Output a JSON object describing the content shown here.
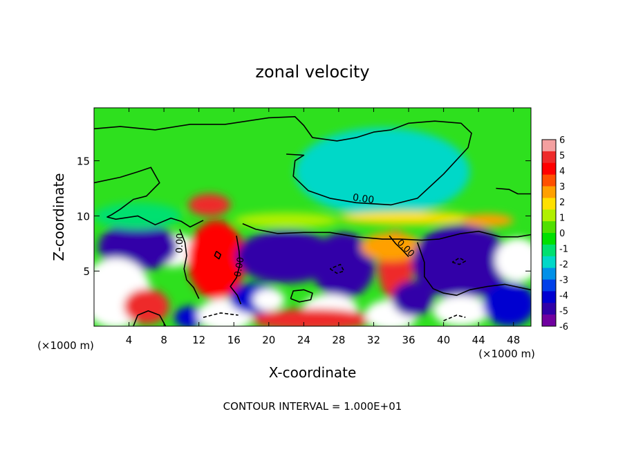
{
  "chart_data": {
    "type": "heatmap",
    "title": "zonal velocity",
    "xlabel": "X-coordinate",
    "ylabel": "Z-coordinate",
    "x_unit_left": "(×1000 m)",
    "x_unit_right": "(×1000 m)",
    "footer": "CONTOUR INTERVAL = 1.000E+01",
    "xlim": [
      0,
      50
    ],
    "ylim": [
      0,
      19.8
    ],
    "x_ticks": [
      4,
      8,
      12,
      16,
      20,
      24,
      28,
      32,
      36,
      40,
      44,
      48
    ],
    "y_ticks": [
      5,
      10,
      15
    ],
    "colorbar": {
      "range": [
        -6,
        6
      ],
      "ticks": [
        6,
        5,
        4,
        3,
        2,
        1,
        0,
        -1,
        -2,
        -3,
        -4,
        -5,
        -6
      ],
      "colors": [
        "#f4a0a0",
        "#ee2a2a",
        "#ff0000",
        "#ff5000",
        "#ffa000",
        "#ffe000",
        "#b0f000",
        "#50e000",
        "#00e000",
        "#00e070",
        "#00d8c8",
        "#0090e8",
        "#0040e8",
        "#0000d0",
        "#3000a8",
        "#7000a0"
      ]
    },
    "contour_labels": [
      "0.00",
      "0.00",
      "0.00",
      "0.00"
    ],
    "blobs": [
      {
        "x": 13.2,
        "z": 11.0,
        "rx": 2.4,
        "rz": 1.0,
        "v": 5
      },
      {
        "x": 9.0,
        "z": 6.9,
        "rx": 2.8,
        "rz": 1.5,
        "v": 7
      },
      {
        "x": 5.0,
        "z": 7.2,
        "rx": 4.5,
        "rz": 2.2,
        "v": -5
      },
      {
        "x": 14.0,
        "z": 6.0,
        "rx": 2.0,
        "rz": 2.8,
        "v": 7
      },
      {
        "x": 14.0,
        "z": 6.0,
        "rx": 3.3,
        "rz": 3.6,
        "v": 4
      },
      {
        "x": 21.5,
        "z": 6.8,
        "rx": 3.4,
        "rz": 1.6,
        "v": 7
      },
      {
        "x": 22.0,
        "z": 6.3,
        "rx": 5.8,
        "rz": 2.4,
        "v": -5
      },
      {
        "x": 28.0,
        "z": 5.5,
        "rx": 2.0,
        "rz": 2.0,
        "v": 7
      },
      {
        "x": 28.5,
        "z": 5.5,
        "rx": 3.6,
        "rz": 3.0,
        "v": -5
      },
      {
        "x": 34.5,
        "z": 5.5,
        "rx": 2.0,
        "rz": 3.2,
        "v": 5
      },
      {
        "x": 34.0,
        "z": 7.2,
        "rx": 3.5,
        "rz": 1.3,
        "v": 3
      },
      {
        "x": 42.0,
        "z": 5.7,
        "rx": 3.2,
        "rz": 2.2,
        "v": 7
      },
      {
        "x": 42.0,
        "z": 5.8,
        "rx": 5.6,
        "rz": 3.4,
        "v": -5
      },
      {
        "x": 48.5,
        "z": 6.0,
        "rx": 2.6,
        "rz": 2.0,
        "v": 7
      },
      {
        "x": 2.5,
        "z": 3.0,
        "rx": 4.0,
        "rz": 3.2,
        "v": 7
      },
      {
        "x": 6.0,
        "z": 1.8,
        "rx": 2.6,
        "rz": 1.6,
        "v": 5
      },
      {
        "x": 11.0,
        "z": 0.8,
        "rx": 1.8,
        "rz": 1.0,
        "v": -4
      },
      {
        "x": 15.0,
        "z": 1.0,
        "rx": 3.2,
        "rz": 1.5,
        "v": 7
      },
      {
        "x": 18.5,
        "z": 2.5,
        "rx": 3.0,
        "rz": 1.4,
        "v": -4
      },
      {
        "x": 20.0,
        "z": 2.4,
        "rx": 1.8,
        "rz": 1.0,
        "v": 7
      },
      {
        "x": 27.0,
        "z": 1.5,
        "rx": 3.2,
        "rz": 1.4,
        "v": 7
      },
      {
        "x": 25.0,
        "z": 0.6,
        "rx": 7.0,
        "rz": 1.0,
        "v": 5
      },
      {
        "x": 34.0,
        "z": 1.0,
        "rx": 3.0,
        "rz": 1.4,
        "v": 7
      },
      {
        "x": 36.5,
        "z": 2.5,
        "rx": 2.4,
        "rz": 1.6,
        "v": -5
      },
      {
        "x": 42.0,
        "z": 1.4,
        "rx": 3.2,
        "rz": 1.4,
        "v": 7
      },
      {
        "x": 47.5,
        "z": 2.0,
        "rx": 3.0,
        "rz": 2.0,
        "v": -4
      },
      {
        "x": 33.0,
        "z": 14.0,
        "rx": 10.0,
        "rz": 4.0,
        "v": -1.8
      },
      {
        "x": 36.0,
        "z": 9.8,
        "rx": 8.0,
        "rz": 0.6,
        "v": 2.2
      },
      {
        "x": 5.0,
        "z": 10.0,
        "rx": 5.0,
        "rz": 1.2,
        "v": -1.2
      },
      {
        "x": 22.0,
        "z": 9.6,
        "rx": 6.0,
        "rz": 0.7,
        "v": 1.2
      },
      {
        "x": 45.0,
        "z": 9.6,
        "rx": 3.0,
        "rz": 0.6,
        "v": 2.5
      }
    ],
    "contours": [
      {
        "dashed": false,
        "pts": [
          [
            0,
            17.9
          ],
          [
            3,
            18.1
          ],
          [
            7,
            17.8
          ],
          [
            11,
            18.3
          ],
          [
            15,
            18.3
          ],
          [
            20,
            18.9
          ],
          [
            23,
            19.0
          ],
          [
            24,
            18.2
          ],
          [
            25,
            17.1
          ],
          [
            27.8,
            16.8
          ],
          [
            30,
            17.1
          ],
          [
            32,
            17.6
          ],
          [
            34,
            17.8
          ],
          [
            36,
            18.4
          ],
          [
            39,
            18.6
          ],
          [
            42,
            18.4
          ],
          [
            43.2,
            17.5
          ],
          [
            42.8,
            16.2
          ],
          [
            40,
            13.8
          ],
          [
            37,
            11.6
          ],
          [
            34,
            11.0
          ],
          [
            30,
            11.2
          ],
          [
            27,
            11.6
          ],
          [
            24.5,
            12.3
          ],
          [
            22.8,
            13.6
          ],
          [
            23,
            15.0
          ],
          [
            24,
            15.5
          ],
          [
            22,
            15.6
          ]
        ]
      },
      {
        "dashed": false,
        "pts": [
          [
            0,
            13.0
          ],
          [
            3,
            13.5
          ],
          [
            5,
            14.0
          ],
          [
            6.5,
            14.4
          ],
          [
            7.5,
            13.0
          ],
          [
            6,
            11.8
          ],
          [
            4.5,
            11.5
          ],
          [
            3,
            10.6
          ],
          [
            2,
            10.1
          ],
          [
            1.5,
            9.9
          ],
          [
            2.5,
            9.7
          ],
          [
            5,
            10.0
          ],
          [
            7,
            9.2
          ],
          [
            8.8,
            9.8
          ],
          [
            10,
            9.5
          ],
          [
            11,
            9.0
          ],
          [
            12.5,
            9.6
          ]
        ]
      },
      {
        "dashed": false,
        "pts": [
          [
            17,
            9.3
          ],
          [
            18.5,
            8.8
          ],
          [
            21,
            8.4
          ],
          [
            24,
            8.5
          ],
          [
            27,
            8.5
          ],
          [
            30,
            8.1
          ],
          [
            33,
            7.9
          ],
          [
            35,
            7.9
          ],
          [
            37.5,
            7.8
          ],
          [
            39.5,
            7.9
          ],
          [
            42,
            8.4
          ],
          [
            44,
            8.6
          ],
          [
            46.5,
            8.1
          ],
          [
            48.5,
            8.1
          ],
          [
            50,
            8.3
          ]
        ]
      },
      {
        "dashed": false,
        "pts": [
          [
            46,
            12.5
          ],
          [
            47.5,
            12.4
          ],
          [
            48.5,
            12.0
          ],
          [
            50,
            12.0
          ]
        ]
      },
      {
        "dashed": false,
        "pts": [
          [
            33.8,
            8.2
          ],
          [
            34.5,
            7.5
          ],
          [
            35.3,
            6.9
          ],
          [
            36.0,
            6.3
          ]
        ]
      },
      {
        "dashed": false,
        "pts": [
          [
            9.8,
            8.8
          ],
          [
            10.4,
            7.6
          ],
          [
            10.6,
            6.4
          ],
          [
            10.3,
            5.2
          ],
          [
            10.6,
            4.2
          ],
          [
            11.4,
            3.5
          ],
          [
            12.0,
            2.5
          ]
        ]
      },
      {
        "dashed": false,
        "pts": [
          [
            16.3,
            8.2
          ],
          [
            16.6,
            6.8
          ],
          [
            16.7,
            5.6
          ],
          [
            16.3,
            4.4
          ],
          [
            15.6,
            3.6
          ],
          [
            16.4,
            2.8
          ],
          [
            16.8,
            2.0
          ]
        ]
      },
      {
        "dashed": false,
        "pts": [
          [
            37.0,
            7.6
          ],
          [
            37.8,
            5.8
          ],
          [
            37.8,
            4.5
          ],
          [
            38.8,
            3.4
          ],
          [
            40.0,
            3.0
          ],
          [
            41.5,
            2.8
          ],
          [
            43.0,
            3.3
          ],
          [
            45.0,
            3.6
          ],
          [
            47.0,
            3.8
          ],
          [
            50,
            3.3
          ]
        ]
      },
      {
        "dashed": false,
        "pts": [
          [
            22.5,
            2.5
          ],
          [
            23.5,
            2.2
          ],
          [
            24.8,
            2.4
          ],
          [
            25.0,
            3.0
          ],
          [
            24.0,
            3.3
          ],
          [
            22.8,
            3.2
          ],
          [
            22.5,
            2.5
          ]
        ]
      },
      {
        "dashed": false,
        "pts": [
          [
            4.5,
            0.0
          ],
          [
            5.0,
            1.0
          ],
          [
            6.2,
            1.4
          ],
          [
            7.5,
            1.0
          ],
          [
            8.2,
            0.0
          ]
        ]
      },
      {
        "dashed": false,
        "pts": [
          [
            14.0,
            6.8
          ],
          [
            14.5,
            6.5
          ],
          [
            14.3,
            6.1
          ],
          [
            13.8,
            6.4
          ],
          [
            14.0,
            6.8
          ]
        ]
      },
      {
        "dashed": true,
        "pts": [
          [
            27.0,
            5.2
          ],
          [
            27.8,
            4.8
          ],
          [
            28.6,
            5.0
          ],
          [
            28.2,
            5.6
          ],
          [
            27.0,
            5.2
          ]
        ]
      },
      {
        "dashed": true,
        "pts": [
          [
            41.0,
            5.8
          ],
          [
            41.8,
            5.6
          ],
          [
            42.5,
            5.9
          ],
          [
            41.8,
            6.2
          ],
          [
            41.0,
            5.8
          ]
        ]
      },
      {
        "dashed": true,
        "pts": [
          [
            12.5,
            0.8
          ],
          [
            14.5,
            1.2
          ],
          [
            16.5,
            1.0
          ]
        ]
      },
      {
        "dashed": true,
        "pts": [
          [
            40.0,
            0.5
          ],
          [
            41.5,
            1.0
          ],
          [
            42.5,
            0.8
          ]
        ]
      }
    ]
  }
}
